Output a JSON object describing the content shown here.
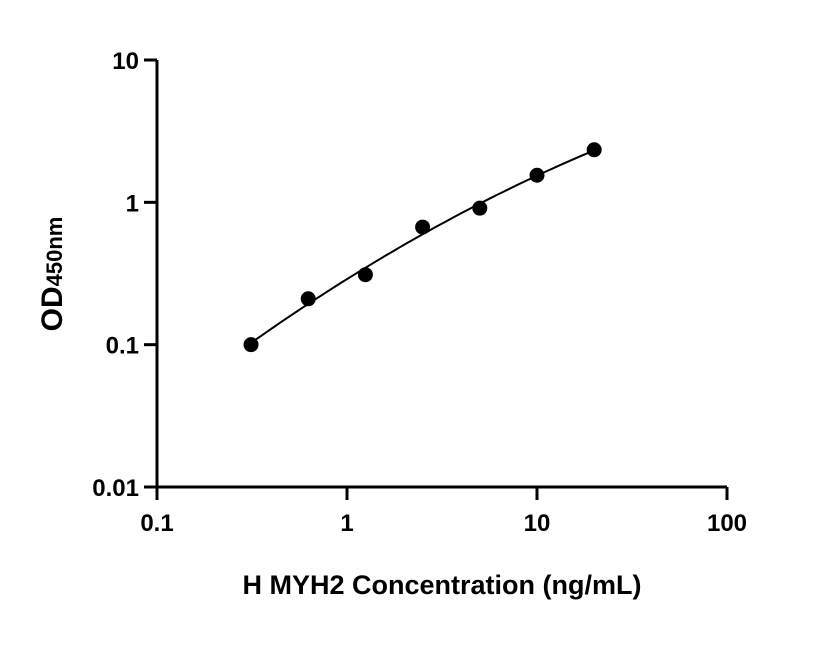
{
  "chart_data": {
    "type": "scatter",
    "title": "",
    "xlabel": "H MYH2 Concentration (ng/mL)",
    "ylabel": "OD",
    "ylabel_sub": "450nm",
    "x_scale": "log",
    "y_scale": "log",
    "xlim": [
      0.1,
      100
    ],
    "ylim": [
      0.01,
      10
    ],
    "x_ticks": [
      "0.1",
      "1",
      "10",
      "100"
    ],
    "y_ticks": [
      "0.01",
      "0.1",
      "1",
      "10"
    ],
    "grid": false,
    "fit_line": true,
    "marker_color": "#000000",
    "points": [
      {
        "x": 0.3125,
        "y": 0.1
      },
      {
        "x": 0.625,
        "y": 0.21
      },
      {
        "x": 1.25,
        "y": 0.31
      },
      {
        "x": 2.5,
        "y": 0.67
      },
      {
        "x": 5,
        "y": 0.91
      },
      {
        "x": 10,
        "y": 1.55
      },
      {
        "x": 20,
        "y": 2.34
      }
    ]
  }
}
